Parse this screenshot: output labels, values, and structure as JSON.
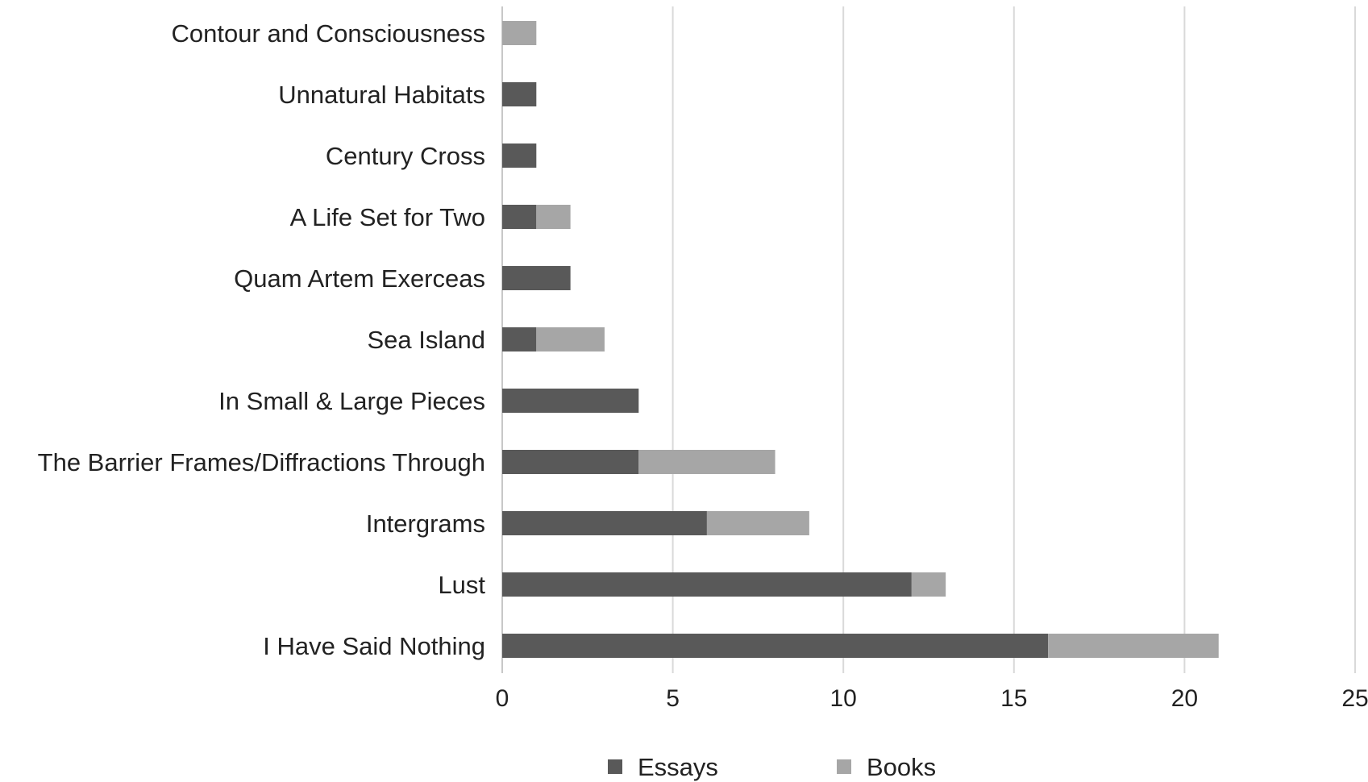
{
  "chart_data": {
    "type": "bar",
    "orientation": "horizontal",
    "stacked": true,
    "title": "",
    "xlabel": "",
    "ylabel": "",
    "xlim": [
      0,
      25
    ],
    "x_ticks": [
      0,
      5,
      10,
      15,
      20,
      25
    ],
    "grid": "vertical",
    "legend_position": "bottom",
    "categories": [
      "Contour and Consciousness",
      "Unnatural Habitats",
      "Century Cross",
      "A Life Set for Two",
      "Quam Artem Exerceas",
      "Sea Island",
      "In Small & Large Pieces",
      "The Barrier Frames/Diffractions Through",
      "Intergrams",
      "Lust",
      "I Have Said Nothing"
    ],
    "series": [
      {
        "name": "Essays",
        "color": "#595959",
        "values": [
          0,
          1,
          1,
          1,
          2,
          1,
          4,
          4,
          6,
          12,
          16
        ]
      },
      {
        "name": "Books",
        "color": "#a6a6a6",
        "values": [
          1,
          0,
          0,
          1,
          0,
          2,
          0,
          4,
          3,
          1,
          5
        ]
      }
    ]
  }
}
